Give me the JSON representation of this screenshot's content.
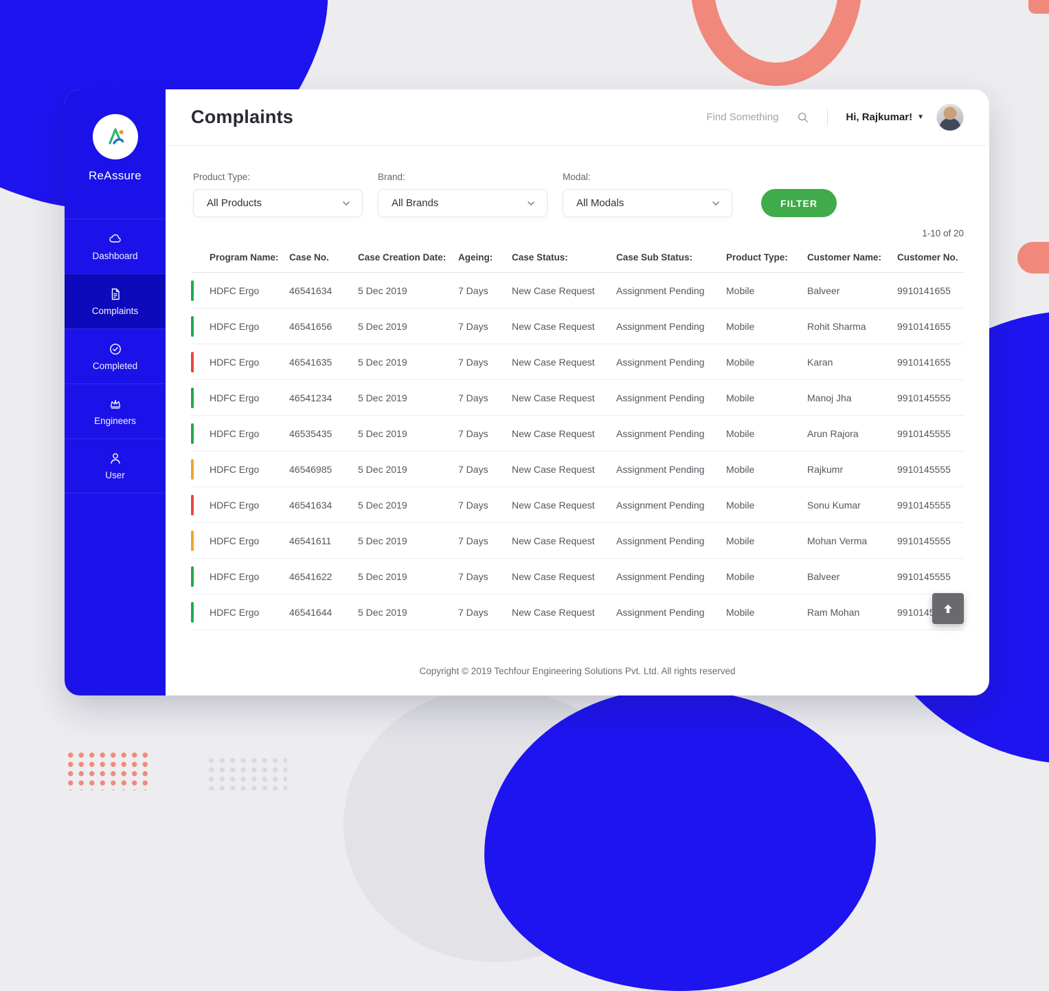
{
  "app": {
    "name": "ReAssure"
  },
  "sidebar": {
    "items": [
      {
        "label": "Dashboard",
        "icon": "dashboard-icon",
        "active": false
      },
      {
        "label": "Complaints",
        "icon": "complaints-icon",
        "active": true
      },
      {
        "label": "Completed",
        "icon": "completed-icon",
        "active": false
      },
      {
        "label": "Engineers",
        "icon": "engineers-icon",
        "active": false
      },
      {
        "label": "User",
        "icon": "user-icon",
        "active": false
      }
    ]
  },
  "header": {
    "title": "Complaints",
    "search_placeholder": "Find Something",
    "greeting": "Hi, Rajkumar!"
  },
  "filters": {
    "product_type": {
      "label": "Product Type:",
      "value": "All Products"
    },
    "brand": {
      "label": "Brand:",
      "value": "All Brands"
    },
    "modal": {
      "label": "Modal:",
      "value": "All Modals"
    },
    "button_label": "FILTER"
  },
  "pagination": {
    "label": "1-10 of 20"
  },
  "table": {
    "columns": [
      "Program Name:",
      "Case No.",
      "Case Creation Date:",
      "Ageing:",
      "Case Status:",
      "Case Sub Status:",
      "Product Type:",
      "Customer Name:",
      "Customer No."
    ],
    "indicator_colors": {
      "green": "#21a94f",
      "red": "#e64747",
      "orange": "#f2a52a"
    },
    "rows": [
      {
        "program_name": "HDFC Ergo",
        "case_no": "46541634",
        "case_creation_date": "5 Dec 2019",
        "ageing": "7 Days",
        "case_status": "New Case Request",
        "case_sub_status": "Assignment Pending",
        "product_type": "Mobile",
        "customer_name": "Balveer",
        "customer_no": "9910141655",
        "indicator": "green"
      },
      {
        "program_name": "HDFC Ergo",
        "case_no": "46541656",
        "case_creation_date": "5 Dec 2019",
        "ageing": "7 Days",
        "case_status": "New Case Request",
        "case_sub_status": "Assignment Pending",
        "product_type": "Mobile",
        "customer_name": "Rohit Sharma",
        "customer_no": "9910141655",
        "indicator": "green"
      },
      {
        "program_name": "HDFC Ergo",
        "case_no": "46541635",
        "case_creation_date": "5 Dec 2019",
        "ageing": "7 Days",
        "case_status": "New Case Request",
        "case_sub_status": "Assignment Pending",
        "product_type": "Mobile",
        "customer_name": "Karan",
        "customer_no": "9910141655",
        "indicator": "red"
      },
      {
        "program_name": "HDFC Ergo",
        "case_no": "46541234",
        "case_creation_date": "5 Dec 2019",
        "ageing": "7 Days",
        "case_status": "New Case Request",
        "case_sub_status": "Assignment Pending",
        "product_type": "Mobile",
        "customer_name": "Manoj Jha",
        "customer_no": "9910145555",
        "indicator": "green"
      },
      {
        "program_name": "HDFC Ergo",
        "case_no": "46535435",
        "case_creation_date": "5 Dec 2019",
        "ageing": "7 Days",
        "case_status": "New Case Request",
        "case_sub_status": "Assignment Pending",
        "product_type": "Mobile",
        "customer_name": "Arun Rajora",
        "customer_no": "9910145555",
        "indicator": "green"
      },
      {
        "program_name": "HDFC Ergo",
        "case_no": "46546985",
        "case_creation_date": "5 Dec 2019",
        "ageing": "7 Days",
        "case_status": "New Case Request",
        "case_sub_status": "Assignment Pending",
        "product_type": "Mobile",
        "customer_name": "Rajkumr",
        "customer_no": "9910145555",
        "indicator": "orange"
      },
      {
        "program_name": "HDFC Ergo",
        "case_no": "46541634",
        "case_creation_date": "5 Dec 2019",
        "ageing": "7 Days",
        "case_status": "New Case Request",
        "case_sub_status": "Assignment Pending",
        "product_type": "Mobile",
        "customer_name": "Sonu Kumar",
        "customer_no": "9910145555",
        "indicator": "red"
      },
      {
        "program_name": "HDFC Ergo",
        "case_no": "46541611",
        "case_creation_date": "5 Dec 2019",
        "ageing": "7 Days",
        "case_status": "New Case Request",
        "case_sub_status": "Assignment Pending",
        "product_type": "Mobile",
        "customer_name": "Mohan Verma",
        "customer_no": "9910145555",
        "indicator": "orange"
      },
      {
        "program_name": "HDFC Ergo",
        "case_no": "46541622",
        "case_creation_date": "5 Dec 2019",
        "ageing": "7 Days",
        "case_status": "New Case Request",
        "case_sub_status": "Assignment Pending",
        "product_type": "Mobile",
        "customer_name": "Balveer",
        "customer_no": "9910145555",
        "indicator": "green"
      },
      {
        "program_name": "HDFC Ergo",
        "case_no": "46541644",
        "case_creation_date": "5 Dec 2019",
        "ageing": "7 Days",
        "case_status": "New Case Request",
        "case_sub_status": "Assignment Pending",
        "product_type": "Mobile",
        "customer_name": "Ram Mohan",
        "customer_no": "9910145555",
        "indicator": "green"
      }
    ]
  },
  "footer": {
    "copyright": "Copyright © 2019 Techfour Engineering Solutions Pvt. Ltd. All rights reserved"
  },
  "colors": {
    "sidebar_blue": "#1b12e9",
    "sidebar_active_blue": "#0d0abc",
    "accent_green": "#3fab4a",
    "coral": "#f0897b",
    "blob_blue": "#1e14f0"
  }
}
